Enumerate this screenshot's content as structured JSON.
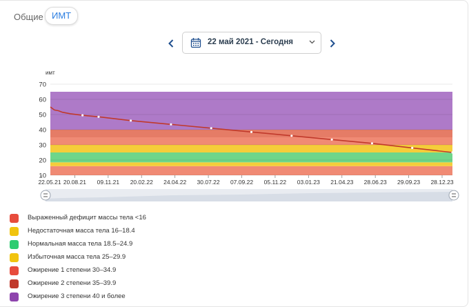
{
  "tabs": {
    "general": "Общие",
    "bmi": "ИМТ"
  },
  "date_range": {
    "label": "22 май 2021 - Сегодня"
  },
  "icons": {
    "prev": "chevron-left-icon",
    "next": "chevron-right-icon",
    "calendar": "calendar-icon",
    "dropdown": "chevron-down-icon"
  },
  "chart_data": {
    "type": "line",
    "ylabel": "имт",
    "ylim": [
      10,
      70
    ],
    "yticks": [
      10,
      20,
      30,
      40,
      50,
      60,
      70
    ],
    "x_ticks": [
      "22.05.21",
      "20.08.21",
      "09.11.21",
      "20.02.22",
      "24.04.22",
      "30.07.22",
      "07.09.22",
      "05.11.22",
      "03.01.23",
      "21.04.23",
      "28.06.23",
      "29.09.23",
      "28.12.23"
    ],
    "bands": [
      {
        "from": 10,
        "to": 16,
        "color": "#f08a74"
      },
      {
        "from": 16,
        "to": 18.5,
        "color": "#f5cd3a"
      },
      {
        "from": 18.5,
        "to": 25,
        "color": "#6ed68a"
      },
      {
        "from": 25,
        "to": 30,
        "color": "#f5cd3a"
      },
      {
        "from": 30,
        "to": 35,
        "color": "#f08a74"
      },
      {
        "from": 35,
        "to": 40,
        "color": "#e57c66"
      },
      {
        "from": 40,
        "to": 65,
        "color": "#ae7ac8"
      }
    ],
    "series": [
      {
        "color": "#c0392b",
        "x": [
          0,
          0.01,
          0.02,
          0.03,
          0.05,
          0.08,
          0.12,
          0.2,
          0.3,
          0.4,
          0.5,
          0.6,
          0.7,
          0.8,
          0.9,
          1.0
        ],
        "values": [
          55,
          53,
          52.5,
          51.5,
          50.5,
          49.5,
          48.5,
          46,
          43.5,
          41,
          38.5,
          36,
          33.5,
          31,
          28,
          25
        ]
      }
    ]
  },
  "legend": [
    {
      "label": "Выраженный дефицит массы тела <16",
      "color": "#e74c3c"
    },
    {
      "label": "Недостаточная масса тела 16–18.4",
      "color": "#f1c40f"
    },
    {
      "label": "Нормальная масса тела 18.5–24.9",
      "color": "#2ecc71"
    },
    {
      "label": "Избыточная масса тела 25–29.9",
      "color": "#f1c40f"
    },
    {
      "label": "Ожирение 1 степени 30–34.9",
      "color": "#e74c3c"
    },
    {
      "label": "Ожирение 2 степени 35–39.9",
      "color": "#c0392b"
    },
    {
      "label": "Ожирение 3 степени 40 и более",
      "color": "#8e44ad"
    }
  ]
}
